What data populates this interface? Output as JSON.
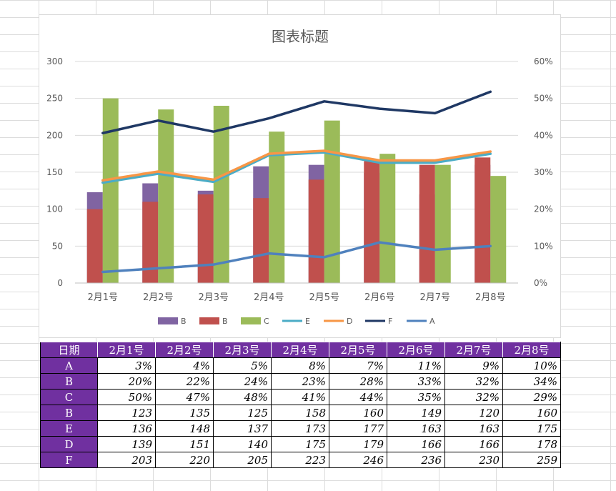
{
  "chart_data": {
    "type": "bar",
    "title": "图表标题",
    "categories": [
      "2月1号",
      "2月2号",
      "2月3号",
      "2月4号",
      "2月5号",
      "2月6号",
      "2月7号",
      "2月8号"
    ],
    "y_left": {
      "ticks": [
        "0",
        "50",
        "100",
        "150",
        "200",
        "250",
        "300"
      ],
      "ylim": [
        0,
        300
      ]
    },
    "y_right": {
      "ticks": [
        "0%",
        "10%",
        "20%",
        "30%",
        "40%",
        "50%",
        "60%"
      ],
      "ylim": [
        0,
        0.6
      ]
    },
    "grid": true,
    "legend_position": "bottom",
    "series": [
      {
        "name": "B",
        "type": "bar",
        "axis": "left",
        "color": "#8064a2",
        "values": [
          123,
          135,
          125,
          158,
          160,
          149,
          120,
          160
        ]
      },
      {
        "name": "B",
        "type": "bar",
        "axis": "right",
        "color": "#c0504d",
        "values": [
          0.2,
          0.22,
          0.24,
          0.23,
          0.28,
          0.33,
          0.32,
          0.34
        ]
      },
      {
        "name": "C",
        "type": "bar",
        "axis": "right",
        "color": "#9bbb59",
        "values": [
          0.5,
          0.47,
          0.48,
          0.41,
          0.44,
          0.35,
          0.32,
          0.29
        ]
      },
      {
        "name": "E",
        "type": "line",
        "axis": "left",
        "color": "#4bacc6",
        "values": [
          136,
          148,
          137,
          173,
          177,
          163,
          163,
          175
        ]
      },
      {
        "name": "D",
        "type": "line",
        "axis": "left",
        "color": "#f79646",
        "values": [
          139,
          151,
          140,
          175,
          179,
          166,
          166,
          178
        ]
      },
      {
        "name": "F",
        "type": "line",
        "axis": "left",
        "color": "#1f3864",
        "values": [
          203,
          220,
          205,
          223,
          246,
          236,
          230,
          259
        ]
      },
      {
        "name": "A",
        "type": "line",
        "axis": "right",
        "color": "#4f81bd",
        "values": [
          0.03,
          0.04,
          0.05,
          0.08,
          0.07,
          0.11,
          0.09,
          0.1
        ]
      }
    ]
  },
  "table": {
    "header": [
      "日期",
      "2月1号",
      "2月2号",
      "2月3号",
      "2月4号",
      "2月5号",
      "2月6号",
      "2月7号",
      "2月8号"
    ],
    "rows": [
      {
        "label": "A",
        "cells": [
          "3%",
          "4%",
          "5%",
          "8%",
          "7%",
          "11%",
          "9%",
          "10%"
        ]
      },
      {
        "label": "B",
        "cells": [
          "20%",
          "22%",
          "24%",
          "23%",
          "28%",
          "33%",
          "32%",
          "34%"
        ]
      },
      {
        "label": "C",
        "cells": [
          "50%",
          "47%",
          "48%",
          "41%",
          "44%",
          "35%",
          "32%",
          "29%"
        ]
      },
      {
        "label": "B",
        "cells": [
          "123",
          "135",
          "125",
          "158",
          "160",
          "149",
          "120",
          "160"
        ]
      },
      {
        "label": "E",
        "cells": [
          "136",
          "148",
          "137",
          "173",
          "177",
          "163",
          "163",
          "175"
        ]
      },
      {
        "label": "D",
        "cells": [
          "139",
          "151",
          "140",
          "175",
          "179",
          "166",
          "166",
          "178"
        ]
      },
      {
        "label": "F",
        "cells": [
          "203",
          "220",
          "205",
          "223",
          "246",
          "236",
          "230",
          "259"
        ]
      }
    ]
  }
}
